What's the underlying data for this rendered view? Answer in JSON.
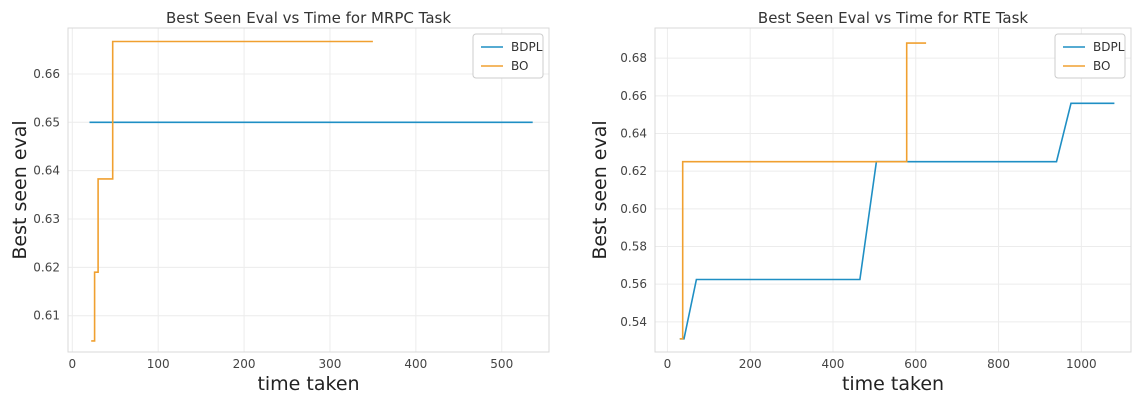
{
  "chart_data": [
    {
      "type": "line",
      "title": "Best Seen Eval vs Time for MRPC Task",
      "xlabel": "time taken",
      "ylabel": "Best seen eval",
      "xlim": [
        -5,
        555
      ],
      "ylim": [
        0.6025,
        0.6695
      ],
      "xticks": [
        0,
        100,
        200,
        300,
        400,
        500
      ],
      "yticks": [
        0.61,
        0.62,
        0.63,
        0.64,
        0.65,
        0.66
      ],
      "xtick_labels": [
        "0",
        "100",
        "200",
        "300",
        "400",
        "500"
      ],
      "ytick_labels": [
        "0.61",
        "0.62",
        "0.63",
        "0.64",
        "0.65",
        "0.66"
      ],
      "grid": true,
      "legend": "top-right",
      "series": [
        {
          "name": "BDPL",
          "color": "#1f8fc4",
          "x": [
            20,
            536
          ],
          "y": [
            0.65,
            0.65
          ]
        },
        {
          "name": "BO",
          "color": "#f0a030",
          "x": [
            22,
            26,
            26,
            30,
            30,
            47,
            47,
            350
          ],
          "y": [
            0.6048,
            0.6048,
            0.619,
            0.619,
            0.6383,
            0.6383,
            0.6667,
            0.6667
          ]
        }
      ]
    },
    {
      "type": "line",
      "title": "Best Seen Eval vs Time for RTE Task",
      "xlabel": "time taken",
      "ylabel": "Best seen eval",
      "xlim": [
        -30,
        1120
      ],
      "ylim": [
        0.524,
        0.696
      ],
      "xticks": [
        0,
        200,
        400,
        600,
        800,
        1000
      ],
      "yticks": [
        0.54,
        0.56,
        0.58,
        0.6,
        0.62,
        0.64,
        0.66,
        0.68
      ],
      "xtick_labels": [
        "0",
        "200",
        "400",
        "600",
        "800",
        "1000"
      ],
      "ytick_labels": [
        "0.54",
        "0.56",
        "0.58",
        "0.60",
        "0.62",
        "0.64",
        "0.66",
        "0.68"
      ],
      "grid": true,
      "legend": "top-right",
      "series": [
        {
          "name": "BDPL",
          "color": "#1f8fc4",
          "x": [
            30,
            40,
            70,
            465,
            505,
            940,
            975,
            1080
          ],
          "y": [
            0.531,
            0.531,
            0.5625,
            0.5625,
            0.625,
            0.625,
            0.656,
            0.656
          ]
        },
        {
          "name": "BO",
          "color": "#f0a030",
          "x": [
            30,
            37,
            37,
            578,
            578,
            625
          ],
          "y": [
            0.531,
            0.531,
            0.625,
            0.625,
            0.688,
            0.688
          ]
        }
      ]
    }
  ]
}
